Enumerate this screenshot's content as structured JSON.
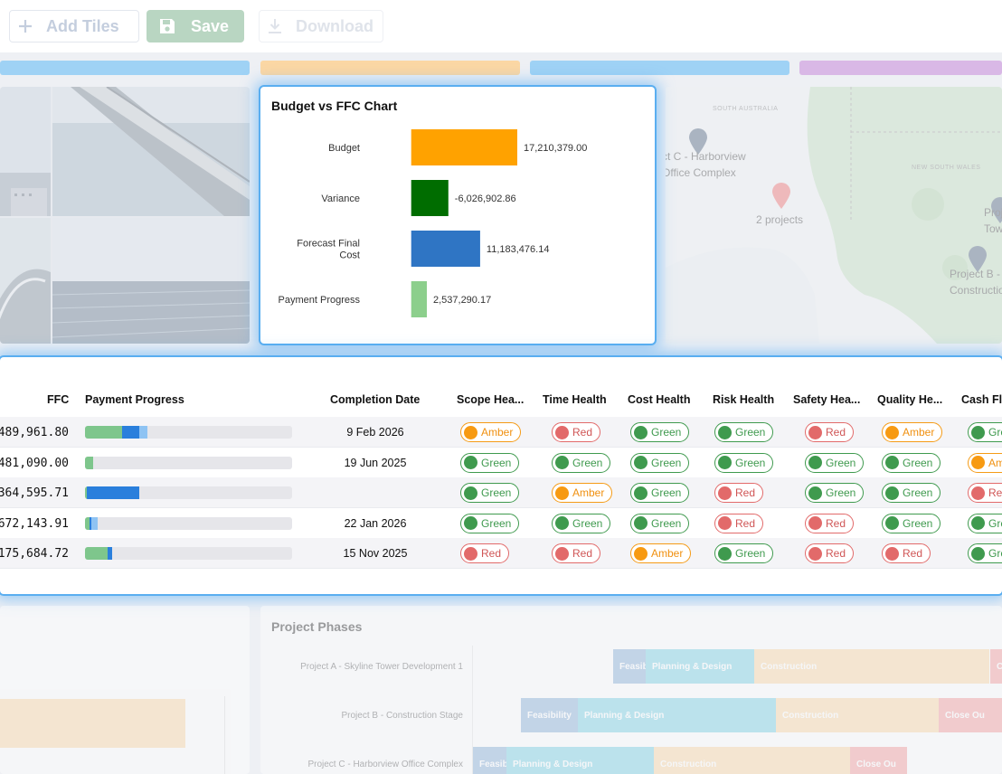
{
  "toolbar": {
    "add_tiles": "Add Tiles",
    "save": "Save",
    "download": "Download"
  },
  "strips": [
    "#9fd2f5",
    "#fbd7a4",
    "#9fd2f5",
    "#d9b8e6"
  ],
  "chart": {
    "title": "Budget vs FFC Chart"
  },
  "chart_data": {
    "type": "bar",
    "orientation": "horizontal",
    "title": "Budget vs FFC Chart",
    "categories": [
      "Budget",
      "Variance",
      "Forecast Final Cost",
      "Payment Progress"
    ],
    "category_lines": [
      [
        "Budget"
      ],
      [
        "Variance"
      ],
      [
        "Forecast Final",
        "Cost"
      ],
      [
        "Payment Progress"
      ]
    ],
    "values": [
      17210379.0,
      -6026902.86,
      11183476.14,
      2537290.17
    ],
    "value_labels": [
      "17,210,379.00",
      "-6,026,902.86",
      "11,183,476.14",
      "2,537,290.17"
    ],
    "colors": [
      "#ffa200",
      "#006d00",
      "#2f75c4",
      "#8ccf8c"
    ],
    "xlim": [
      -7000000,
      17210379
    ],
    "grid": false,
    "legend": "none"
  },
  "map": {
    "regions": [
      "SOUTH AUSTRALIA",
      "NEW SOUTH WALES"
    ],
    "markers": [
      {
        "label_lines": [
          "ct C - Harborview",
          "Office Complex"
        ],
        "color": "#5a6c85"
      },
      {
        "label_lines": [
          "2 projects"
        ],
        "color": "#f07777"
      },
      {
        "label_lines": [
          "Proje",
          "Tower"
        ],
        "color": "#5a6c85"
      },
      {
        "label_lines": [
          "Project B -",
          "Construction S"
        ],
        "color": "#5a6c85"
      }
    ]
  },
  "table": {
    "headers": [
      "FFC",
      "Payment Progress",
      "Completion Date",
      "Scope Hea...",
      "Time Health",
      "Cost Health",
      "Risk Health",
      "Safety Hea...",
      "Quality He...",
      "Cash Fl..."
    ],
    "rows": [
      {
        "ffc": "489,961.80",
        "progress": [
          0.18,
          0.08,
          0.04
        ],
        "date": "9 Feb 2026",
        "health": [
          "Amber",
          "Red",
          "Green",
          "Green",
          "Red",
          "Amber",
          "Green"
        ]
      },
      {
        "ffc": "481,090.00",
        "progress": [
          0.04,
          0,
          0
        ],
        "date": "19 Jun 2025",
        "health": [
          "Green",
          "Green",
          "Green",
          "Green",
          "Green",
          "Green",
          "Amber"
        ]
      },
      {
        "ffc": "364,595.71",
        "progress": [
          0.01,
          0.25,
          0
        ],
        "date": "",
        "health": [
          "Green",
          "Amber",
          "Green",
          "Red",
          "Green",
          "Green",
          "Red"
        ]
      },
      {
        "ffc": "672,143.91",
        "progress": [
          0.02,
          0.01,
          0.03
        ],
        "date": "22 Jan 2026",
        "health": [
          "Green",
          "Green",
          "Green",
          "Red",
          "Red",
          "Green",
          "Green"
        ]
      },
      {
        "ffc": "175,684.72",
        "progress": [
          0.11,
          0.02,
          0
        ],
        "date": "15 Nov 2025",
        "health": [
          "Red",
          "Red",
          "Amber",
          "Green",
          "Red",
          "Red",
          "Green"
        ]
      }
    ]
  },
  "phases": {
    "title": "Project Phases",
    "rows": [
      {
        "label": "Project A - Skyline Tower Development 1",
        "bars": [
          {
            "name": "Feasibility",
            "color": "#8fb4d9"
          },
          {
            "name": "Planning & Design",
            "color": "#7fd3e3"
          },
          {
            "name": "Construction",
            "color": "#fcd9a8"
          },
          {
            "name": "C",
            "color": "#f5a0a0"
          }
        ]
      },
      {
        "label": "Project B - Construction Stage",
        "bars": [
          {
            "name": "Feasibility",
            "color": "#8fb4d9"
          },
          {
            "name": "Planning & Design",
            "color": "#7fd3e3"
          },
          {
            "name": "Construction",
            "color": "#fcd9a8"
          },
          {
            "name": "Close Ou",
            "color": "#f5a0a0"
          }
        ]
      },
      {
        "label": "Project C - Harborview Office Complex",
        "bars": [
          {
            "name": "Feasib",
            "color": "#8fb4d9"
          },
          {
            "name": "Planning & Design",
            "color": "#7fd3e3"
          },
          {
            "name": "Construction",
            "color": "#fcd9a8"
          },
          {
            "name": "Close Ou",
            "color": "#f5a0a0"
          }
        ]
      }
    ]
  }
}
